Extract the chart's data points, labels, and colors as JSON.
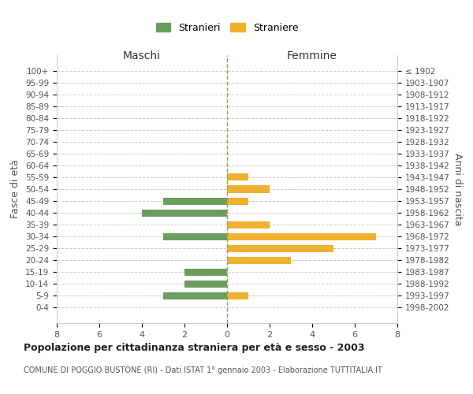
{
  "age_groups": [
    "100+",
    "95-99",
    "90-94",
    "85-89",
    "80-84",
    "75-79",
    "70-74",
    "65-69",
    "60-64",
    "55-59",
    "50-54",
    "45-49",
    "40-44",
    "35-39",
    "30-34",
    "25-29",
    "20-24",
    "15-19",
    "10-14",
    "5-9",
    "0-4"
  ],
  "birth_years": [
    "≤ 1902",
    "1903-1907",
    "1908-1912",
    "1913-1917",
    "1918-1922",
    "1923-1927",
    "1928-1932",
    "1933-1937",
    "1938-1942",
    "1943-1947",
    "1948-1952",
    "1953-1957",
    "1958-1962",
    "1963-1967",
    "1968-1972",
    "1973-1977",
    "1978-1982",
    "1983-1987",
    "1988-1992",
    "1993-1997",
    "1998-2002"
  ],
  "maschi": [
    0,
    0,
    0,
    0,
    0,
    0,
    0,
    0,
    0,
    0,
    0,
    3,
    4,
    0,
    3,
    0,
    0,
    2,
    2,
    3,
    0
  ],
  "femmine": [
    0,
    0,
    0,
    0,
    0,
    0,
    0,
    0,
    0,
    1,
    2,
    1,
    0,
    2,
    7,
    5,
    3,
    0,
    0,
    1,
    0
  ],
  "color_maschi": "#6b9e5e",
  "color_femmine": "#f0b030",
  "title": "Popolazione per cittadinanza straniera per età e sesso - 2003",
  "subtitle": "COMUNE DI POGGIO BUSTONE (RI) - Dati ISTAT 1° gennaio 2003 - Elaborazione TUTTITALIA.IT",
  "xlabel_left": "Maschi",
  "xlabel_right": "Femmine",
  "ylabel_left": "Fasce di età",
  "ylabel_right": "Anni di nascita",
  "xlim": 8,
  "legend_stranieri": "Stranieri",
  "legend_straniere": "Straniere",
  "background_color": "#ffffff",
  "grid_color": "#cccccc",
  "dashed_color": "#999966"
}
